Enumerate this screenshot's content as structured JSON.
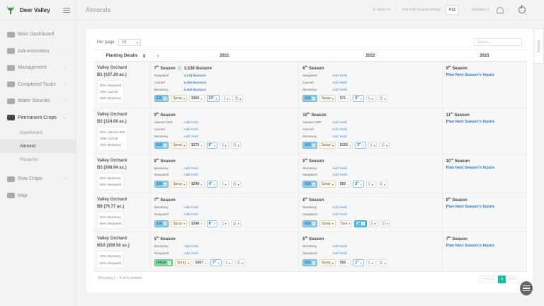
{
  "brand": {
    "name": "Deer Valley"
  },
  "sidebar": {
    "items": [
      {
        "label": "Main Dashboard",
        "icon": "dashboard-icon",
        "chevron": ""
      },
      {
        "label": "Administration",
        "icon": "gears-icon",
        "chevron": "‹"
      },
      {
        "label": "Management",
        "icon": "management-icon",
        "chevron": "‹"
      },
      {
        "label": "Completed Tasks",
        "icon": "tasks-icon",
        "chevron": "‹"
      },
      {
        "label": "Water Sources",
        "icon": "water-icon",
        "chevron": "‹"
      },
      {
        "label": "Permanent Crops",
        "icon": "leaf-icon",
        "chevron": "⌄"
      }
    ],
    "subitems": [
      {
        "label": "Dashboard"
      },
      {
        "label": "Almond"
      },
      {
        "label": "Pistachio"
      }
    ],
    "items_after": [
      {
        "label": "Row Crops",
        "icon": "row-crops-icon",
        "chevron": "‹"
      },
      {
        "label": "Map",
        "icon": "map-icon",
        "chevron": ""
      }
    ]
  },
  "header": {
    "title": "Almonds",
    "how_to": "How To",
    "fullscreen_hint": "For Full Screen Press:",
    "fullscreen_key": "F11",
    "user": "Guntars V."
  },
  "reports_tab": "Reports",
  "controls": {
    "per_page_label": "Per page:",
    "per_page_value": "10",
    "search_placeholder": "Search..."
  },
  "table": {
    "headers": {
      "planting": "Planting Details",
      "years": [
        "2021",
        "2022",
        "2023"
      ]
    },
    "rows": [
      {
        "orchard": "Valley Orchard",
        "block": "B1 (107.20 ac.)",
        "mix": [
          "50% Nonpareil",
          "25% Carmel",
          "25% Monterey"
        ],
        "y2021": {
          "season_num": "7",
          "season_sup": "th",
          "season_label": "Season",
          "at": "@",
          "yield": "3,538 lbs/acre",
          "varieties": [
            {
              "v": "Nonpareil",
              "y": "3,238 lbs/acre"
            },
            {
              "v": "Carmel",
              "y": "5,369 lbs/acre"
            },
            {
              "v": "Monterey",
              "y": "2,306 lbs/acre"
            }
          ],
          "chips": {
            "fert": "828",
            "fert_n": "3",
            "spray": "Spray",
            "cost": "$365",
            "cost_n": "6",
            "irr": "23\"",
            "irr_n": "6"
          }
        },
        "y2022": {
          "season_num": "8",
          "season_sup": "th",
          "season_label": "Season",
          "varieties": [
            {
              "v": "Nonpareil",
              "y": "Add Yield"
            },
            {
              "v": "Carmel",
              "y": "Add Yield"
            },
            {
              "v": "Monterey",
              "y": "Add Yield"
            }
          ],
          "chips": {
            "fert": "828",
            "fert_n": "3",
            "spray": "Spray",
            "cost": "$71",
            "cost_n": "1",
            "irr": "6\"",
            "irr_n": "2"
          }
        },
        "y2023": {
          "season_num": "9",
          "season_sup": "th",
          "season_label": "Season",
          "plan": "Plan Next Season's Inputs"
        }
      },
      {
        "orchard": "Valley Orchard",
        "block": "B2 (124.00 ac.)",
        "mix": [
          "50% Hansen 536",
          "25% Carmel",
          "25% Monterey"
        ],
        "y2021": {
          "season_num": "9",
          "season_sup": "th",
          "season_label": "Season",
          "varieties": [
            {
              "v": "Hansen 536",
              "y": "Add Yield"
            },
            {
              "v": "Carmel",
              "y": "Add Yield"
            },
            {
              "v": "Monterey",
              "y": "Add Yield"
            }
          ],
          "chips": {
            "fert": "828",
            "fert_n": "2",
            "spray": "Spray",
            "cost": "$275",
            "cost_n": "4",
            "irr": "6\"",
            "irr_n": "4"
          }
        },
        "y2022": {
          "season_num": "10",
          "season_sup": "th",
          "season_label": "Season",
          "varieties": [
            {
              "v": "Hansen 536",
              "y": "Add Yield"
            },
            {
              "v": "Carmel",
              "y": "Add Yield"
            },
            {
              "v": "Monterey",
              "y": "Add Yield"
            }
          ],
          "chips": {
            "fert": "828",
            "fert_n": "3",
            "spray": "Spray",
            "cost": "$150",
            "cost_n": "1",
            "irr": "3\"",
            "irr_n": "2"
          }
        },
        "y2023": {
          "season_num": "11",
          "season_sup": "th",
          "season_label": "Season",
          "plan": "Plan Next Season's Inputs"
        }
      },
      {
        "orchard": "Valley Orchard",
        "block": "B3 (308.94 ac.)",
        "mix": [
          "50% Monterey",
          "50% Nonpareil"
        ],
        "y2021": {
          "season_num": "8",
          "season_sup": "th",
          "season_label": "Season",
          "varieties": [
            {
              "v": "Monterey",
              "y": "Add Yield"
            },
            {
              "v": "Nonpareil",
              "y": "Add Yield"
            }
          ],
          "chips": {
            "fert": "828",
            "fert_n": "2",
            "spray": "Spray",
            "cost": "$298",
            "cost_n": "4",
            "irr": "4\"",
            "irr_n": "4"
          }
        },
        "y2022": {
          "season_num": "9",
          "season_sup": "th",
          "season_label": "Season",
          "varieties": [
            {
              "v": "Monterey",
              "y": "Add Yield"
            },
            {
              "v": "Nonpareil",
              "y": "Add Yield"
            }
          ],
          "chips": {
            "fert": "828",
            "fert_n": "4",
            "spray": "Spray",
            "cost": "$50",
            "cost_n": "1",
            "irr": "2\"",
            "irr_n": "2"
          }
        },
        "y2023": {
          "season_num": "10",
          "season_sup": "th",
          "season_label": "Season",
          "plan": "Plan Next Season's Inputs"
        }
      },
      {
        "orchard": "Valley Orchard",
        "block": "B8 (76.77 ac.)",
        "mix": [
          "50% Monterey",
          "50% Nonpareil"
        ],
        "y2021": {
          "season_num": "7",
          "season_sup": "th",
          "season_label": "Season",
          "varieties": [
            {
              "v": "Monterey",
              "y": "Add Yield"
            },
            {
              "v": "Nonpareil",
              "y": "Add Yield"
            }
          ],
          "chips": {
            "fert": "828",
            "fert_n": "2",
            "spray": "Spray",
            "cost": "$248",
            "cost_n": "3",
            "irr": "8\"",
            "irr_n": "3"
          }
        },
        "y2022": {
          "season_num": "8",
          "season_sup": "th",
          "season_label": "Season",
          "varieties": [
            {
              "v": "Monterey",
              "y": "Add Yield"
            },
            {
              "v": "Nonpareil",
              "y": "Add Yield"
            }
          ],
          "chips": {
            "fert": "828",
            "fert_n": "2",
            "spray": "Spray",
            "task": "Task",
            "irr": "2\"",
            "irr_n": "2"
          }
        },
        "y2023": {
          "season_num": "9",
          "season_sup": "th",
          "season_label": "Season",
          "plan": "Plan Next Season's Inputs"
        }
      },
      {
        "orchard": "Valley Orchard",
        "block": "M10 (309.50 ac.)",
        "mix": [
          "50% Monterey",
          "50% Nonpareil"
        ],
        "y2021": {
          "season_num": "5",
          "season_sup": "th",
          "season_label": "Season",
          "varieties": [
            {
              "v": "Monterey",
              "y": "Add Yield"
            },
            {
              "v": "Nonpareil",
              "y": "Add Yield"
            }
          ],
          "chips": {
            "fert": "UREA",
            "fert_n": "2",
            "spray": "Spray",
            "cost": "$367",
            "cost_n": "5",
            "irr": "7\"",
            "irr_n": "5"
          }
        },
        "y2022": {
          "season_num": "6",
          "season_sup": "th",
          "season_label": "Season",
          "varieties": [
            {
              "v": "Monterey",
              "y": "Add Yield"
            },
            {
              "v": "Nonpareil",
              "y": "Add Yield"
            }
          ],
          "chips": {
            "fert": "828",
            "fert_n": "2",
            "spray": "Spray",
            "cost": "$50",
            "cost_n": "1",
            "irr": "1\"",
            "irr_n": "1"
          }
        },
        "y2023": {
          "season_num": "7",
          "season_sup": "th",
          "season_label": "Season",
          "plan": "Plan Next Season's Inputs"
        }
      }
    ]
  },
  "footer": {
    "showing": "Showing 1 - 5 of 5 entries",
    "prev": "Previous",
    "page": "1",
    "next": "Next"
  },
  "colors": {
    "accent": "#1abc9c",
    "link": "#3a85d8",
    "fert_chip": "#8ccbea",
    "urea_chip": "#88d6a8"
  }
}
